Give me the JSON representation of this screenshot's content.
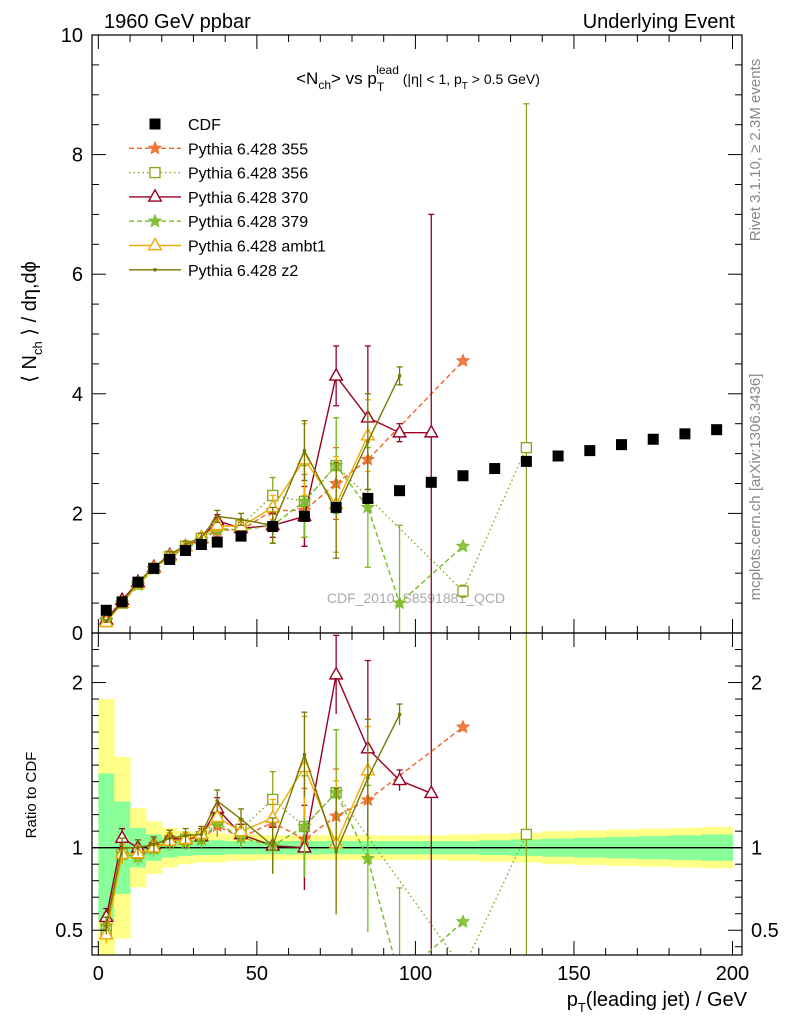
{
  "header": {
    "left": "1960 GeV ppbar",
    "right": "Underlying Event"
  },
  "side_text": {
    "rivet": "Rivet 3.1.10, ≥ 2.3M events",
    "mcplots": "mcplots.cern.ch [arXiv:1306.3436]"
  },
  "watermark": "CDF_2010_S8591881_QCD",
  "colors": {
    "CDF": "#000000",
    "p355": "#ee6622",
    "p356": "#88aa22",
    "p370": "#990022",
    "p379": "#77bb22",
    "ambt1": "#eeaa00",
    "z2": "#777700",
    "band_inner": "#88ff99",
    "band_outer": "#ffff88"
  },
  "chart_data": [
    {
      "type": "line",
      "panel": "main",
      "title_parts": {
        "a": "<N",
        "b": "ch",
        "c": "> vs p",
        "d": "T",
        "e": "lead",
        "f": " (|η| < 1, p",
        "g": "T",
        "h": " > 0.5 GeV)"
      },
      "ylabel_parts": {
        "a": "⟨ N",
        "b": "ch",
        "c": " ⟩ / dη,dϕ"
      },
      "xlim": [
        -2,
        203
      ],
      "ylim": [
        0,
        10
      ],
      "yticks": [
        0,
        2,
        4,
        6,
        8,
        10
      ],
      "legend_position": "top-left",
      "series": [
        {
          "key": "CDF",
          "name": "CDF",
          "style": "cdf",
          "x": [
            2.5,
            7.5,
            12.5,
            17.5,
            22.5,
            27.5,
            32.5,
            37.5,
            45,
            55,
            65,
            75,
            85,
            95,
            105,
            115,
            125,
            135,
            145,
            155,
            165,
            175,
            185,
            195
          ],
          "y": [
            0.38,
            0.52,
            0.85,
            1.08,
            1.23,
            1.38,
            1.48,
            1.52,
            1.62,
            1.78,
            1.95,
            2.1,
            2.25,
            2.38,
            2.52,
            2.63,
            2.75,
            2.87,
            2.96,
            3.05,
            3.15,
            3.24,
            3.33,
            3.4
          ]
        },
        {
          "key": "p355",
          "name": "Pythia 6.428 355",
          "style": "p355",
          "x": [
            2.5,
            7.5,
            12.5,
            17.5,
            22.5,
            27.5,
            32.5,
            37.5,
            45,
            55,
            65,
            75,
            85,
            115
          ],
          "y": [
            0.21,
            0.5,
            0.82,
            1.08,
            1.27,
            1.42,
            1.55,
            1.72,
            1.72,
            2.05,
            2.05,
            2.5,
            2.9,
            4.55
          ],
          "err": [
            0.02,
            0.03,
            0.04,
            0.05,
            0.06,
            0.06,
            0.07,
            0.1,
            0.1,
            0.2,
            0.6,
            0.6,
            0.7,
            0
          ]
        },
        {
          "key": "p356",
          "name": "Pythia 6.428 356",
          "style": "p356",
          "x": [
            2.5,
            7.5,
            12.5,
            17.5,
            22.5,
            27.5,
            32.5,
            37.5,
            45,
            55,
            65,
            75,
            115,
            135
          ],
          "y": [
            0.19,
            0.5,
            0.82,
            1.08,
            1.28,
            1.45,
            1.58,
            1.78,
            1.8,
            2.3,
            2.2,
            2.8,
            0.7,
            3.1
          ],
          "err": [
            0.02,
            0.03,
            0.04,
            0.05,
            0.06,
            0.06,
            0.07,
            0.1,
            0.1,
            0.3,
            0.6,
            0.8,
            0.1,
            5.75
          ]
        },
        {
          "key": "p370",
          "name": "Pythia 6.428 370",
          "style": "p370",
          "x": [
            2.5,
            7.5,
            12.5,
            17.5,
            22.5,
            27.5,
            32.5,
            37.5,
            45,
            55,
            65,
            75,
            85,
            95,
            105
          ],
          "y": [
            0.22,
            0.55,
            0.85,
            1.1,
            1.3,
            1.45,
            1.58,
            1.88,
            1.75,
            1.8,
            1.95,
            4.3,
            3.6,
            3.35,
            3.35
          ],
          "err": [
            0.02,
            0.03,
            0.04,
            0.05,
            0.06,
            0.06,
            0.07,
            0.1,
            0.1,
            0.2,
            0.5,
            0.5,
            1.2,
            0.15,
            3.65
          ]
        },
        {
          "key": "p379",
          "name": "Pythia 6.428 379",
          "style": "p379",
          "x": [
            2.5,
            7.5,
            12.5,
            17.5,
            22.5,
            27.5,
            32.5,
            37.5,
            45,
            55,
            65,
            75,
            85,
            95,
            115
          ],
          "y": [
            0.2,
            0.5,
            0.8,
            1.07,
            1.27,
            1.42,
            1.55,
            1.75,
            1.72,
            1.8,
            2.2,
            2.8,
            2.1,
            0.5,
            1.45
          ],
          "err": [
            0.02,
            0.03,
            0.04,
            0.05,
            0.06,
            0.06,
            0.07,
            0.1,
            0.1,
            0.3,
            0.6,
            0.8,
            1.0,
            1.3,
            0
          ]
        },
        {
          "key": "ambt1",
          "name": "Pythia 6.428 ambt1",
          "style": "ambt1",
          "x": [
            2.5,
            7.5,
            12.5,
            17.5,
            22.5,
            27.5,
            32.5,
            37.5,
            45,
            55,
            65,
            75,
            85
          ],
          "y": [
            0.18,
            0.5,
            0.82,
            1.08,
            1.28,
            1.45,
            1.6,
            1.8,
            1.78,
            2.1,
            2.9,
            2.15,
            3.3
          ],
          "err": [
            0.02,
            0.03,
            0.04,
            0.05,
            0.06,
            0.06,
            0.07,
            0.1,
            0.1,
            0.2,
            0.6,
            0.8,
            0.6
          ]
        },
        {
          "key": "z2",
          "name": "Pythia 6.428 z2",
          "style": "z2",
          "x": [
            2.5,
            7.5,
            12.5,
            17.5,
            22.5,
            27.5,
            32.5,
            37.5,
            45,
            55,
            65,
            75,
            85,
            95
          ],
          "y": [
            0.2,
            0.52,
            0.85,
            1.1,
            1.3,
            1.48,
            1.6,
            1.95,
            1.9,
            1.8,
            3.05,
            2.05,
            3.2,
            4.3
          ],
          "err": [
            0.02,
            0.03,
            0.04,
            0.05,
            0.06,
            0.06,
            0.07,
            0.1,
            0.1,
            0.3,
            0.5,
            0.8,
            0.8,
            0.15
          ]
        }
      ]
    },
    {
      "type": "line",
      "panel": "ratio",
      "ylabel": "Ratio to CDF",
      "xlabel_parts": {
        "a": "p",
        "b": "T",
        "c": "(leading jet) / GeV"
      },
      "xlim": [
        -2,
        203
      ],
      "ylim": [
        0.35,
        2.3
      ],
      "yticks": [
        0.5,
        1,
        2
      ],
      "ytick_labels": [
        "0.5",
        "1",
        "2"
      ],
      "xticks": [
        0,
        50,
        100,
        150,
        200
      ],
      "xtick_labels": [
        "0",
        "50",
        "100",
        "150",
        "200"
      ],
      "bands": {
        "x_edges": [
          0,
          5,
          10,
          15,
          20,
          25,
          30,
          40,
          50,
          60,
          70,
          80,
          90,
          100,
          110,
          120,
          130,
          140,
          150,
          160,
          170,
          180,
          190,
          200
        ],
        "inner": [
          0.45,
          0.28,
          0.12,
          0.08,
          0.06,
          0.05,
          0.045,
          0.04,
          0.04,
          0.04,
          0.04,
          0.04,
          0.04,
          0.04,
          0.04,
          0.045,
          0.05,
          0.055,
          0.06,
          0.065,
          0.07,
          0.075,
          0.08
        ],
        "outer": [
          0.9,
          0.55,
          0.24,
          0.16,
          0.12,
          0.1,
          0.09,
          0.08,
          0.075,
          0.075,
          0.075,
          0.075,
          0.075,
          0.075,
          0.08,
          0.085,
          0.09,
          0.1,
          0.105,
          0.11,
          0.115,
          0.12,
          0.125
        ]
      }
    }
  ]
}
